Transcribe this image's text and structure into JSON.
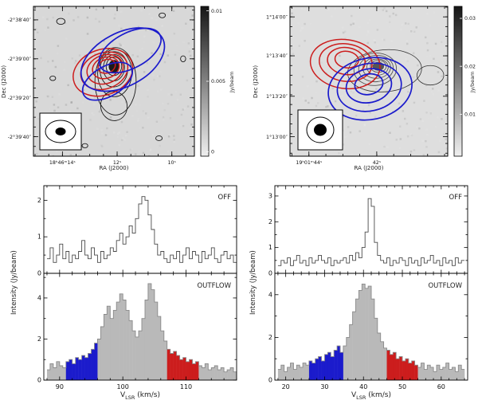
{
  "colors": {
    "blue": "#1b1bcc",
    "red": "#cc1d1d",
    "hist_gray": "#b9b9b9",
    "hist_outline": "#8a8a8a",
    "off_line": "#4a4a4a",
    "contour_black": "#1a1a1a",
    "contour_gray": "#555555"
  },
  "chart_data": [
    {
      "id": "map_left",
      "type": "contour_map",
      "xlabel": "RA (J2000)",
      "ylabel": "Dec (J2000)",
      "bg": "#d8d8d8",
      "xticks": [
        {
          "label": "18ʰ46ᵐ14ˢ",
          "pos": 0.18
        },
        {
          "label": "12ˢ",
          "pos": 0.52
        },
        {
          "label": "10ˢ",
          "pos": 0.86
        }
      ],
      "yticks": [
        {
          "label": "-2°38′40″",
          "pos": 0.09
        },
        {
          "label": "-2°39′00″",
          "pos": 0.35
        },
        {
          "label": "-2°39′20″",
          "pos": 0.61
        },
        {
          "label": "-2°39′40″",
          "pos": 0.87
        }
      ],
      "x_minor": 0.085,
      "y_minor": 0.065,
      "colorbar": {
        "unit": "Jy/beam",
        "ticks": [
          {
            "label": "0.01",
            "pos": 0.03
          },
          {
            "label": "0.005",
            "pos": 0.5
          },
          {
            "label": "0",
            "pos": 0.97
          }
        ]
      },
      "contour_sets": [
        {
          "name": "black",
          "color": "#1a1a1a",
          "width": 0.9,
          "ellipses": [
            [
              0.5,
              0.4,
              0.03,
              0.04,
              0,
              1
            ],
            [
              0.5,
              0.4,
              0.048,
              0.062,
              5,
              0
            ],
            [
              0.5,
              0.41,
              0.066,
              0.088,
              5,
              0
            ],
            [
              0.5,
              0.42,
              0.086,
              0.118,
              4,
              0
            ],
            [
              0.505,
              0.445,
              0.106,
              0.158,
              2,
              0
            ],
            [
              0.51,
              0.5,
              0.128,
              0.225,
              0,
              0
            ],
            [
              0.5,
              0.665,
              0.082,
              0.098,
              -10,
              0
            ],
            [
              0.17,
              0.1,
              0.026,
              0.02,
              0,
              0
            ],
            [
              0.8,
              0.06,
              0.02,
              0.016,
              0,
              0
            ],
            [
              0.12,
              0.48,
              0.018,
              0.015,
              0,
              0
            ],
            [
              0.78,
              0.88,
              0.02,
              0.016,
              0,
              0
            ],
            [
              0.32,
              0.93,
              0.018,
              0.014,
              0,
              0
            ],
            [
              0.93,
              0.35,
              0.016,
              0.02,
              0,
              0
            ]
          ]
        },
        {
          "name": "red",
          "color": "#cc1d1d",
          "width": 1.5,
          "ellipses": [
            [
              0.455,
              0.4,
              0.055,
              0.045,
              -20,
              0
            ],
            [
              0.45,
              0.41,
              0.085,
              0.07,
              -20,
              0
            ],
            [
              0.445,
              0.42,
              0.115,
              0.095,
              -20,
              0
            ],
            [
              0.44,
              0.43,
              0.15,
              0.12,
              -20,
              0
            ],
            [
              0.432,
              0.44,
              0.19,
              0.152,
              -20,
              0
            ]
          ]
        },
        {
          "name": "blue",
          "color": "#1b1bcc",
          "width": 1.7,
          "ellipses": [
            [
              0.6,
              0.295,
              0.21,
              0.118,
              -28,
              0
            ],
            [
              0.555,
              0.355,
              0.28,
              0.178,
              -28,
              0
            ],
            [
              0.46,
              0.5,
              0.17,
              0.1,
              -30,
              0
            ]
          ]
        }
      ]
    },
    {
      "id": "map_right",
      "type": "contour_map",
      "xlabel": "RA (J2000)",
      "ylabel": "Dec (J2000)",
      "bg": "#dedede",
      "xticks": [
        {
          "label": "19ʰ01ᵐ44ˢ",
          "pos": 0.12
        },
        {
          "label": "42ˢ",
          "pos": 0.55
        }
      ],
      "yticks": [
        {
          "label": "1°14′00″",
          "pos": 0.07
        },
        {
          "label": "1°13′40″",
          "pos": 0.33
        },
        {
          "label": "1°13′20″",
          "pos": 0.6
        },
        {
          "label": "1°13′00″",
          "pos": 0.87
        }
      ],
      "x_minor": 0.1075,
      "y_minor": 0.065,
      "colorbar": {
        "unit": "Jy/beam",
        "ticks": [
          {
            "label": "0.03",
            "pos": 0.08
          },
          {
            "label": "0.02",
            "pos": 0.4
          },
          {
            "label": "0.01",
            "pos": 0.72
          }
        ]
      },
      "contour_sets": [
        {
          "name": "gray",
          "color": "#555555",
          "width": 0.9,
          "ellipses": [
            [
              0.56,
              0.4,
              0.034,
              0.027,
              0,
              1
            ],
            [
              0.56,
              0.4,
              0.05,
              0.04,
              0,
              0
            ],
            [
              0.555,
              0.405,
              0.068,
              0.054,
              0,
              0
            ],
            [
              0.55,
              0.41,
              0.088,
              0.07,
              -5,
              0
            ],
            [
              0.545,
              0.415,
              0.11,
              0.088,
              -5,
              0
            ],
            [
              0.54,
              0.42,
              0.135,
              0.108,
              -5,
              0
            ]
          ]
        },
        {
          "name": "black",
          "color": "#333333",
          "width": 0.8,
          "ellipses": [
            [
              0.6,
              0.43,
              0.235,
              0.14,
              -5,
              0
            ],
            [
              0.89,
              0.46,
              0.085,
              0.065,
              0,
              0
            ],
            [
              0.14,
              0.79,
              0.02,
              0.016,
              0,
              0
            ]
          ]
        },
        {
          "name": "red",
          "color": "#cc1d1d",
          "width": 1.5,
          "ellipses": [
            [
              0.36,
              0.355,
              0.075,
              0.055,
              8,
              0
            ],
            [
              0.357,
              0.365,
              0.12,
              0.09,
              8,
              0
            ],
            [
              0.353,
              0.375,
              0.168,
              0.125,
              8,
              0
            ],
            [
              0.35,
              0.385,
              0.222,
              0.163,
              8,
              0
            ]
          ]
        },
        {
          "name": "blue",
          "color": "#1b1bcc",
          "width": 1.7,
          "ellipses": [
            [
              0.5,
              0.52,
              0.09,
              0.068,
              -12,
              0
            ],
            [
              0.5,
              0.53,
              0.145,
              0.112,
              -12,
              0
            ],
            [
              0.503,
              0.54,
              0.205,
              0.158,
              -12,
              0
            ],
            [
              0.508,
              0.55,
              0.268,
              0.205,
              -12,
              0
            ]
          ]
        }
      ]
    },
    {
      "id": "spectra_left",
      "type": "histogram",
      "x_start": 88,
      "bin_width": 0.5,
      "range": [
        87.5,
        118
      ],
      "xlabel": {
        "pre": "V",
        "sub": "LSR",
        "post": " (km/s)"
      },
      "ylabel": "Intensity (Jy/beam)",
      "off": {
        "label": "OFF",
        "ymax": 2.4,
        "major": 1,
        "minor": 0.5,
        "labels": [
          0,
          1,
          2
        ],
        "values": [
          0.4,
          0.7,
          0.3,
          0.5,
          0.8,
          0.4,
          0.6,
          0.3,
          0.5,
          0.4,
          0.6,
          0.9,
          0.5,
          0.4,
          0.7,
          0.5,
          0.3,
          0.6,
          0.4,
          0.5,
          0.7,
          0.6,
          0.9,
          1.1,
          0.8,
          1.0,
          1.3,
          1.1,
          1.5,
          1.9,
          2.1,
          2.0,
          1.6,
          1.2,
          0.8,
          0.5,
          0.6,
          0.4,
          0.3,
          0.5,
          0.4,
          0.6,
          0.3,
          0.5,
          0.7,
          0.4,
          0.6,
          0.5,
          0.3,
          0.6,
          0.4,
          0.5,
          0.7,
          0.4,
          0.3,
          0.5,
          0.6,
          0.4,
          0.5,
          0.3
        ]
      },
      "outflow": {
        "label": "OUTFLOW",
        "ymax": 5.2,
        "major": 2,
        "minor": 1,
        "labels": [
          0,
          2,
          4
        ],
        "blue_range": [
          91,
          96
        ],
        "red_range": [
          107,
          112
        ],
        "values": [
          0.5,
          0.8,
          0.6,
          0.9,
          0.7,
          0.6,
          0.9,
          1.0,
          0.8,
          1.1,
          1.0,
          1.2,
          1.1,
          1.3,
          1.5,
          1.8,
          2.0,
          2.6,
          3.2,
          3.6,
          3.0,
          3.4,
          3.8,
          4.2,
          3.9,
          3.4,
          2.9,
          2.4,
          2.1,
          2.4,
          3.0,
          3.9,
          4.7,
          4.4,
          3.8,
          3.1,
          2.4,
          1.9,
          1.5,
          1.3,
          1.4,
          1.2,
          1.0,
          1.1,
          0.9,
          1.0,
          0.8,
          0.9,
          0.7,
          0.6,
          0.8,
          0.5,
          0.6,
          0.7,
          0.5,
          0.6,
          0.4,
          0.5,
          0.6,
          0.4
        ]
      },
      "xticks_major": [
        90,
        100,
        110
      ]
    },
    {
      "id": "spectra_right",
      "type": "histogram",
      "x_start": 18,
      "bin_width": 0.8,
      "range": [
        17.2,
        66.8
      ],
      "xlabel": {
        "pre": "V",
        "sub": "LSR",
        "post": " (km/s)"
      },
      "ylabel": "Intensity (Jy/beam)",
      "off": {
        "label": "OFF",
        "ymax": 3.4,
        "major": 1,
        "minor": 0.5,
        "labels": [
          0,
          1,
          2,
          3
        ],
        "values": [
          0.3,
          0.5,
          0.4,
          0.6,
          0.3,
          0.5,
          0.7,
          0.4,
          0.5,
          0.3,
          0.6,
          0.4,
          0.5,
          0.7,
          0.5,
          0.4,
          0.6,
          0.3,
          0.5,
          0.4,
          0.5,
          0.6,
          0.4,
          0.7,
          0.5,
          0.8,
          0.6,
          1.0,
          1.6,
          2.9,
          2.6,
          1.2,
          0.7,
          0.5,
          0.4,
          0.6,
          0.3,
          0.5,
          0.4,
          0.6,
          0.5,
          0.3,
          0.6,
          0.4,
          0.5,
          0.3,
          0.6,
          0.4,
          0.5,
          0.7,
          0.4,
          0.5,
          0.3,
          0.6,
          0.4,
          0.5,
          0.3,
          0.6,
          0.4,
          0.5
        ]
      },
      "outflow": {
        "label": "OUTFLOW",
        "ymax": 5.0,
        "major": 2,
        "minor": 1,
        "labels": [
          0,
          2,
          4
        ],
        "blue_range": [
          26,
          34.8
        ],
        "red_range": [
          46,
          54
        ],
        "values": [
          0.5,
          0.7,
          0.4,
          0.6,
          0.8,
          0.5,
          0.7,
          0.6,
          0.8,
          0.7,
          0.9,
          0.8,
          1.0,
          1.1,
          0.9,
          1.2,
          1.3,
          1.1,
          1.4,
          1.6,
          1.3,
          1.6,
          2.0,
          2.6,
          3.2,
          3.8,
          4.2,
          4.5,
          4.3,
          4.4,
          3.8,
          2.9,
          2.2,
          1.8,
          1.5,
          1.4,
          1.2,
          1.3,
          1.0,
          1.1,
          0.9,
          1.0,
          0.8,
          0.9,
          0.7,
          0.6,
          0.8,
          0.5,
          0.7,
          0.6,
          0.4,
          0.7,
          0.5,
          0.6,
          0.8,
          0.5,
          0.6,
          0.4,
          0.7,
          0.5
        ]
      },
      "xticks_major": [
        20,
        30,
        40,
        50,
        60
      ]
    }
  ]
}
